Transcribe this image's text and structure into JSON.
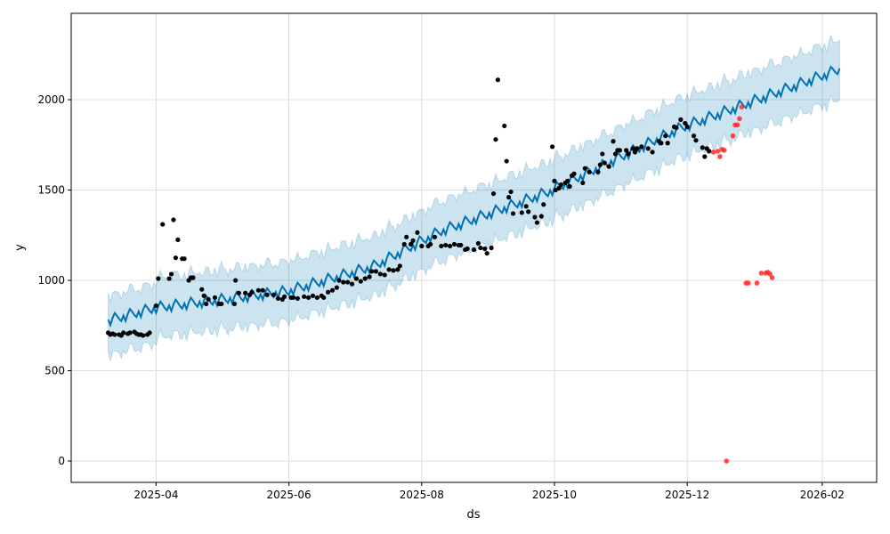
{
  "chart_data": {
    "type": "scatter",
    "title": "",
    "xlabel": "ds",
    "ylabel": "y",
    "x_unit": "days since 2025-04-01",
    "xlim": [
      -39,
      331
    ],
    "ylim": [
      -118,
      2478
    ],
    "grid": true,
    "x_ticks": [
      {
        "d": 0,
        "label": "2025-04"
      },
      {
        "d": 61,
        "label": "2025-06"
      },
      {
        "d": 122,
        "label": "2025-08"
      },
      {
        "d": 183,
        "label": "2025-10"
      },
      {
        "d": 244,
        "label": "2025-12"
      },
      {
        "d": 306,
        "label": "2026-02"
      }
    ],
    "y_ticks": [
      {
        "v": 0,
        "label": "0"
      },
      {
        "v": 500,
        "label": "500"
      },
      {
        "v": 1000,
        "label": "1000"
      },
      {
        "v": 1500,
        "label": "1500"
      },
      {
        "v": 2000,
        "label": "2000"
      }
    ],
    "colors": {
      "observed": "#000000",
      "anomaly": "#ff2a2a",
      "forecast": "#0072b2",
      "interval": "#0072b2"
    },
    "forecast": {
      "range_days": [
        -22,
        314
      ],
      "trend_knots": [
        [
          -22,
          780
        ],
        [
          0,
          850
        ],
        [
          60,
          940
        ],
        [
          100,
          1080
        ],
        [
          130,
          1270
        ],
        [
          180,
          1490
        ],
        [
          240,
          1840
        ],
        [
          314,
          2170
        ]
      ],
      "weekly_amplitude": 30,
      "interval_halfwidth": 165
    },
    "observed": [
      [
        -22,
        710
      ],
      [
        -21,
        700
      ],
      [
        -20,
        705
      ],
      [
        -19,
        700
      ],
      [
        -17,
        700
      ],
      [
        -16,
        695
      ],
      [
        -15,
        710
      ],
      [
        -13,
        705
      ],
      [
        -12,
        710
      ],
      [
        -10,
        715
      ],
      [
        -9,
        705
      ],
      [
        -8,
        700
      ],
      [
        -7,
        700
      ],
      [
        -6,
        695
      ],
      [
        -4,
        700
      ],
      [
        -3,
        710
      ],
      [
        0,
        860
      ],
      [
        1,
        1010
      ],
      [
        3,
        1310
      ],
      [
        6,
        1010
      ],
      [
        7,
        1035
      ],
      [
        8,
        1335
      ],
      [
        9,
        1125
      ],
      [
        10,
        1225
      ],
      [
        12,
        1120
      ],
      [
        13,
        1120
      ],
      [
        15,
        1000
      ],
      [
        16,
        1015
      ],
      [
        17,
        1015
      ],
      [
        21,
        950
      ],
      [
        22,
        915
      ],
      [
        23,
        870
      ],
      [
        24,
        895
      ],
      [
        27,
        905
      ],
      [
        29,
        870
      ],
      [
        30,
        870
      ],
      [
        36,
        870
      ],
      [
        36.5,
        1000
      ],
      [
        38,
        930
      ],
      [
        41,
        930
      ],
      [
        43,
        920
      ],
      [
        44,
        935
      ],
      [
        47,
        945
      ],
      [
        49,
        945
      ],
      [
        51,
        920
      ],
      [
        54,
        920
      ],
      [
        56,
        900
      ],
      [
        58,
        895
      ],
      [
        59,
        910
      ],
      [
        62,
        905
      ],
      [
        63,
        905
      ],
      [
        65,
        900
      ],
      [
        68,
        910
      ],
      [
        70,
        905
      ],
      [
        72,
        915
      ],
      [
        74,
        905
      ],
      [
        76,
        915
      ],
      [
        77,
        905
      ],
      [
        79,
        935
      ],
      [
        81,
        945
      ],
      [
        83,
        960
      ],
      [
        84,
        1000
      ],
      [
        86,
        990
      ],
      [
        88,
        990
      ],
      [
        90,
        980
      ],
      [
        92,
        1010
      ],
      [
        94,
        995
      ],
      [
        96,
        1010
      ],
      [
        98,
        1020
      ],
      [
        99,
        1050
      ],
      [
        101,
        1050
      ],
      [
        103,
        1035
      ],
      [
        105,
        1030
      ],
      [
        107,
        1060
      ],
      [
        109,
        1055
      ],
      [
        111,
        1060
      ],
      [
        112,
        1080
      ],
      [
        114,
        1200
      ],
      [
        115,
        1240
      ],
      [
        117,
        1200
      ],
      [
        118,
        1220
      ],
      [
        120,
        1265
      ],
      [
        122,
        1190
      ],
      [
        125,
        1190
      ],
      [
        126,
        1200
      ],
      [
        128,
        1240
      ],
      [
        131,
        1190
      ],
      [
        133,
        1195
      ],
      [
        135,
        1190
      ],
      [
        137,
        1200
      ],
      [
        139,
        1195
      ],
      [
        140,
        1195
      ],
      [
        142,
        1170
      ],
      [
        143,
        1175
      ],
      [
        146,
        1170
      ],
      [
        148,
        1205
      ],
      [
        149,
        1180
      ],
      [
        151,
        1175
      ],
      [
        152,
        1150
      ],
      [
        154,
        1180
      ],
      [
        155,
        1480
      ],
      [
        156,
        1780
      ],
      [
        157,
        2110
      ],
      [
        160,
        1855
      ],
      [
        161,
        1660
      ],
      [
        162,
        1460
      ],
      [
        163,
        1490
      ],
      [
        164,
        1370
      ],
      [
        168,
        1375
      ],
      [
        170,
        1410
      ],
      [
        171,
        1380
      ],
      [
        174,
        1350
      ],
      [
        175,
        1320
      ],
      [
        177,
        1355
      ],
      [
        178,
        1420
      ],
      [
        182,
        1740
      ],
      [
        183,
        1550
      ],
      [
        183.5,
        1500
      ],
      [
        185,
        1510
      ],
      [
        186,
        1530
      ],
      [
        188,
        1540
      ],
      [
        189,
        1550
      ],
      [
        190,
        1520
      ],
      [
        191,
        1580
      ],
      [
        192,
        1590
      ],
      [
        196,
        1540
      ],
      [
        197,
        1620
      ],
      [
        199,
        1600
      ],
      [
        203,
        1600
      ],
      [
        204,
        1640
      ],
      [
        205,
        1700
      ],
      [
        206,
        1650
      ],
      [
        208,
        1630
      ],
      [
        210,
        1770
      ],
      [
        211,
        1700
      ],
      [
        212,
        1720
      ],
      [
        213,
        1720
      ],
      [
        216,
        1720
      ],
      [
        217,
        1700
      ],
      [
        219,
        1730
      ],
      [
        220,
        1710
      ],
      [
        221,
        1730
      ],
      [
        223,
        1740
      ],
      [
        226,
        1730
      ],
      [
        228,
        1710
      ],
      [
        231,
        1770
      ],
      [
        232,
        1760
      ],
      [
        234,
        1800
      ],
      [
        235,
        1760
      ],
      [
        238,
        1850
      ],
      [
        239,
        1845
      ],
      [
        241,
        1890
      ],
      [
        243,
        1870
      ],
      [
        244,
        1850
      ],
      [
        247,
        1800
      ],
      [
        248,
        1775
      ],
      [
        251,
        1735
      ],
      [
        252,
        1685
      ],
      [
        253,
        1730
      ],
      [
        254,
        1715
      ]
    ],
    "anomalies": [
      [
        256,
        1710
      ],
      [
        258,
        1715
      ],
      [
        259,
        1685
      ],
      [
        260,
        1725
      ],
      [
        261,
        1720
      ],
      [
        262,
        0
      ],
      [
        265,
        1800
      ],
      [
        266,
        1860
      ],
      [
        267,
        1860
      ],
      [
        268,
        1895
      ],
      [
        269,
        1960
      ],
      [
        271,
        985
      ],
      [
        272,
        985
      ],
      [
        276,
        985
      ],
      [
        278,
        1040
      ],
      [
        280,
        1040
      ],
      [
        281,
        1045
      ],
      [
        282,
        1035
      ],
      [
        283,
        1015
      ]
    ]
  }
}
